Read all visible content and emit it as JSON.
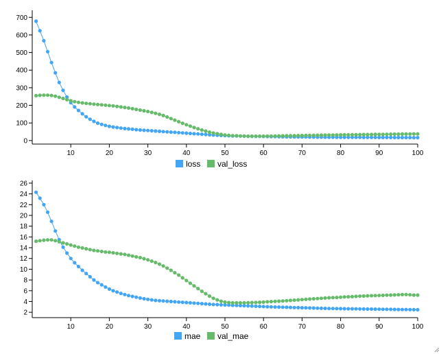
{
  "chart_data": [
    {
      "type": "line",
      "x": [
        1,
        2,
        3,
        4,
        5,
        6,
        7,
        8,
        9,
        10,
        11,
        12,
        13,
        14,
        15,
        16,
        17,
        18,
        19,
        20,
        21,
        22,
        23,
        24,
        25,
        26,
        27,
        28,
        29,
        30,
        31,
        32,
        33,
        34,
        35,
        36,
        37,
        38,
        39,
        40,
        41,
        42,
        43,
        44,
        45,
        46,
        47,
        48,
        49,
        50,
        51,
        52,
        53,
        54,
        55,
        56,
        57,
        58,
        59,
        60,
        61,
        62,
        63,
        64,
        65,
        66,
        67,
        68,
        69,
        70,
        71,
        72,
        73,
        74,
        75,
        76,
        77,
        78,
        79,
        80,
        81,
        82,
        83,
        84,
        85,
        86,
        87,
        88,
        89,
        90,
        91,
        92,
        93,
        94,
        95,
        96,
        97,
        98,
        99,
        100
      ],
      "series": [
        {
          "name": "loss",
          "color": "#42a5f5",
          "values": [
            678,
            624,
            567,
            505,
            443,
            385,
            330,
            285,
            247,
            215,
            191,
            171,
            152,
            135,
            121,
            109,
            99,
            92,
            86,
            81,
            77,
            74,
            71,
            68,
            66,
            64,
            62,
            60,
            58.5,
            57,
            55.5,
            54,
            52.5,
            51,
            49.5,
            48,
            46.5,
            45,
            43.5,
            42,
            40.5,
            39,
            37.5,
            36,
            34.5,
            33,
            31.5,
            30,
            29,
            28,
            27,
            26.5,
            26,
            25.5,
            25,
            24.5,
            24,
            23.8,
            23.5,
            23.2,
            23,
            22.6,
            22.2,
            21.8,
            21.4,
            21,
            20.8,
            20.6,
            20.4,
            20.2,
            20,
            19.8,
            19.6,
            19.4,
            19.2,
            19,
            18.9,
            18.8,
            18.7,
            18.6,
            18.5,
            18.4,
            18.3,
            18.2,
            18.1,
            18,
            17.9,
            17.8,
            17.7,
            17.6,
            17.5,
            17.4,
            17.3,
            17.2,
            17.1,
            17,
            16.9,
            16.8,
            16.7,
            16.6
          ]
        },
        {
          "name": "val_loss",
          "color": "#66bb6a",
          "values": [
            255,
            257,
            258,
            258,
            256,
            252,
            246,
            239,
            232,
            226,
            221,
            217,
            214,
            211,
            209,
            207,
            205,
            203,
            201,
            199,
            197,
            194,
            191,
            188,
            185,
            181,
            177,
            173,
            169,
            165,
            160,
            155,
            149,
            142,
            134,
            125,
            116,
            107,
            98,
            90,
            82,
            74,
            67,
            60,
            54,
            48,
            43,
            39,
            35,
            32,
            30,
            28,
            27,
            26,
            25.5,
            25,
            25,
            25,
            25,
            25,
            25.3,
            25.6,
            26,
            26.4,
            26.8,
            27.2,
            27.6,
            28,
            28.4,
            28.8,
            29.2,
            29.6,
            30,
            30.3,
            30.6,
            31,
            31.3,
            31.6,
            31.9,
            32.2,
            32.5,
            32.8,
            33.1,
            33.4,
            33.7,
            34,
            34.3,
            34.6,
            34.9,
            35.2,
            35.5,
            35.8,
            36.1,
            36.4,
            36.7,
            37,
            37.2,
            37.4,
            37.6,
            37.8
          ]
        }
      ],
      "ylim": [
        -20,
        740
      ],
      "yticks": [
        0,
        100,
        200,
        300,
        400,
        500,
        600,
        700
      ],
      "xticks": [
        10,
        20,
        30,
        40,
        50,
        60,
        70,
        80,
        90,
        100
      ],
      "xlim": [
        0,
        100
      ],
      "title": "",
      "xlabel": "",
      "ylabel": "",
      "grid": false,
      "legend": "bottom-center"
    },
    {
      "type": "line",
      "x": [
        1,
        2,
        3,
        4,
        5,
        6,
        7,
        8,
        9,
        10,
        11,
        12,
        13,
        14,
        15,
        16,
        17,
        18,
        19,
        20,
        21,
        22,
        23,
        24,
        25,
        26,
        27,
        28,
        29,
        30,
        31,
        32,
        33,
        34,
        35,
        36,
        37,
        38,
        39,
        40,
        41,
        42,
        43,
        44,
        45,
        46,
        47,
        48,
        49,
        50,
        51,
        52,
        53,
        54,
        55,
        56,
        57,
        58,
        59,
        60,
        61,
        62,
        63,
        64,
        65,
        66,
        67,
        68,
        69,
        70,
        71,
        72,
        73,
        74,
        75,
        76,
        77,
        78,
        79,
        80,
        81,
        82,
        83,
        84,
        85,
        86,
        87,
        88,
        89,
        90,
        91,
        92,
        93,
        94,
        95,
        96,
        97,
        98,
        99,
        100
      ],
      "series": [
        {
          "name": "mae",
          "color": "#42a5f5",
          "values": [
            24.3,
            23.2,
            22.0,
            20.6,
            18.9,
            17.1,
            15.5,
            14.1,
            13.0,
            12.0,
            11.2,
            10.5,
            9.8,
            9.2,
            8.6,
            8.0,
            7.5,
            7.1,
            6.7,
            6.3,
            6.0,
            5.75,
            5.5,
            5.3,
            5.1,
            4.95,
            4.8,
            4.65,
            4.5,
            4.4,
            4.3,
            4.2,
            4.15,
            4.1,
            4.05,
            4.0,
            3.95,
            3.9,
            3.85,
            3.8,
            3.75,
            3.7,
            3.65,
            3.6,
            3.55,
            3.5,
            3.45,
            3.42,
            3.39,
            3.36,
            3.33,
            3.3,
            3.27,
            3.24,
            3.21,
            3.18,
            3.15,
            3.12,
            3.09,
            3.06,
            3.03,
            3.0,
            2.98,
            2.96,
            2.94,
            2.92,
            2.9,
            2.88,
            2.86,
            2.84,
            2.82,
            2.8,
            2.78,
            2.76,
            2.74,
            2.72,
            2.7,
            2.69,
            2.68,
            2.67,
            2.66,
            2.65,
            2.64,
            2.63,
            2.62,
            2.61,
            2.6,
            2.59,
            2.58,
            2.57,
            2.56,
            2.55,
            2.54,
            2.53,
            2.52,
            2.51,
            2.5,
            2.49,
            2.48,
            2.47
          ]
        },
        {
          "name": "val_mae",
          "color": "#66bb6a",
          "values": [
            15.2,
            15.3,
            15.4,
            15.45,
            15.45,
            15.3,
            15.1,
            14.9,
            14.7,
            14.5,
            14.3,
            14.1,
            13.95,
            13.8,
            13.65,
            13.5,
            13.4,
            13.3,
            13.2,
            13.15,
            13.05,
            12.95,
            12.85,
            12.75,
            12.6,
            12.45,
            12.3,
            12.15,
            11.95,
            11.75,
            11.5,
            11.25,
            10.95,
            10.6,
            10.2,
            9.8,
            9.35,
            8.9,
            8.4,
            7.9,
            7.4,
            6.9,
            6.4,
            5.9,
            5.45,
            5.0,
            4.6,
            4.3,
            4.05,
            3.9,
            3.8,
            3.75,
            3.75,
            3.75,
            3.76,
            3.78,
            3.8,
            3.83,
            3.86,
            3.9,
            3.94,
            3.98,
            4.02,
            4.06,
            4.1,
            4.15,
            4.2,
            4.25,
            4.3,
            4.35,
            4.4,
            4.45,
            4.5,
            4.55,
            4.6,
            4.65,
            4.7,
            4.72,
            4.75,
            4.8,
            4.85,
            4.88,
            4.9,
            4.95,
            5.0,
            5.02,
            5.05,
            5.08,
            5.1,
            5.12,
            5.15,
            5.18,
            5.2,
            5.22,
            5.25,
            5.28,
            5.3,
            5.25,
            5.2,
            5.2
          ]
        }
      ],
      "ylim": [
        1,
        26.5
      ],
      "yticks": [
        2,
        4,
        6,
        8,
        10,
        12,
        14,
        16,
        18,
        20,
        22,
        24,
        26
      ],
      "xticks": [
        10,
        20,
        30,
        40,
        50,
        60,
        70,
        80,
        90,
        100
      ],
      "xlim": [
        0,
        100
      ],
      "title": "",
      "xlabel": "",
      "ylabel": "",
      "grid": false,
      "legend": "bottom-center"
    }
  ],
  "window": {
    "resize_grip_icon": "resize-grip-icon"
  }
}
